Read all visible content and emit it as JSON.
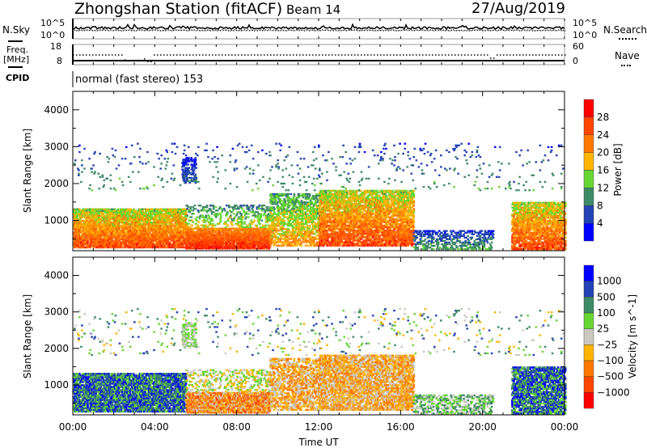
{
  "header": {
    "title": "Zhongshan Station (fitACF)",
    "beam": "Beam 14",
    "date": "27/Aug/2019"
  },
  "noise_panel": {
    "left_label": "N.Sky",
    "right_label": "N.Search",
    "left_ticks": [
      "10^5",
      "10^0"
    ],
    "right_ticks": [
      "10^5",
      "10^0"
    ]
  },
  "freq_panel": {
    "left_label_1": "Freq.",
    "left_label_2": "[MHz]",
    "right_label": "Nave",
    "left_ticks": [
      "18",
      "8"
    ],
    "right_ticks": [
      "60",
      "0"
    ]
  },
  "cpid": {
    "label": "CPID",
    "value": "normal (fast stereo) 153"
  },
  "chart_data": [
    {
      "type": "heatmap",
      "name": "power",
      "ylabel": "Slant Range [km]",
      "xlabel": "Time UT",
      "xlim": [
        0,
        24
      ],
      "ylim": [
        180,
        4500
      ],
      "xticks": [
        "00:00",
        "04:00",
        "08:00",
        "12:00",
        "16:00",
        "20:00",
        "00:00"
      ],
      "yticks": [
        "1000",
        "2000",
        "3000",
        "4000"
      ],
      "ytick_values": [
        1000,
        2000,
        3000,
        4000
      ],
      "colorbar": {
        "label": "Power [dB]",
        "ticks": [
          "28",
          "24",
          "20",
          "16",
          "12",
          "8",
          "4"
        ],
        "colors": [
          "#0000ff",
          "#2343b4",
          "#3f8a66",
          "#66d633",
          "#ffb400",
          "#ff7800",
          "#ff4600",
          "#ff0000"
        ]
      }
    },
    {
      "type": "heatmap",
      "name": "velocity",
      "ylabel": "Slant Range [km]",
      "xlabel": "Time UT",
      "xlim": [
        0,
        24
      ],
      "ylim": [
        180,
        4500
      ],
      "xticks": [
        "00:00",
        "04:00",
        "08:00",
        "12:00",
        "16:00",
        "20:00",
        "00:00"
      ],
      "yticks": [
        "1000",
        "2000",
        "3000",
        "4000"
      ],
      "ytick_values": [
        1000,
        2000,
        3000,
        4000
      ],
      "colorbar": {
        "label": "Velocity [m s^-1]",
        "ticks": [
          "1000",
          "500",
          "100",
          "25",
          "−25",
          "−100",
          "−500",
          "−1000"
        ],
        "colors": [
          "#0000ff",
          "#2343b4",
          "#3f8a66",
          "#66d633",
          "#c8c8c0",
          "#ffb400",
          "#ff7800",
          "#ff4600",
          "#ff0000"
        ]
      }
    }
  ],
  "echo_regions": [
    {
      "t": [
        0,
        5.5
      ],
      "r": [
        250,
        1300
      ],
      "power": [
        14,
        30
      ],
      "vel": [
        0,
        4
      ],
      "density": 0.75
    },
    {
      "t": [
        5.5,
        9.6
      ],
      "r": [
        220,
        800
      ],
      "power": [
        20,
        31
      ],
      "vel": [
        4,
        8
      ],
      "density": 0.8
    },
    {
      "t": [
        5.5,
        9.6
      ],
      "r": [
        800,
        1400
      ],
      "power": [
        8,
        20
      ],
      "vel": [
        3,
        6
      ],
      "density": 0.25
    },
    {
      "t": [
        9.6,
        12
      ],
      "r": [
        300,
        1700
      ],
      "power": [
        10,
        24
      ],
      "vel": [
        4,
        7
      ],
      "density": 0.5
    },
    {
      "t": [
        12,
        16.6
      ],
      "r": [
        300,
        1800
      ],
      "power": [
        14,
        30
      ],
      "vel": [
        4,
        7
      ],
      "density": 0.65
    },
    {
      "t": [
        16.6,
        20.5
      ],
      "r": [
        200,
        700
      ],
      "power": [
        4,
        14
      ],
      "vel": [
        2,
        5
      ],
      "density": 0.35
    },
    {
      "t": [
        21.4,
        24
      ],
      "r": [
        200,
        1500
      ],
      "power": [
        14,
        30
      ],
      "vel": [
        0,
        4
      ],
      "density": 0.65
    },
    {
      "t": [
        0,
        24
      ],
      "r": [
        1800,
        3100
      ],
      "power": [
        4,
        14
      ],
      "vel": [
        1,
        6
      ],
      "density": 0.03
    },
    {
      "t": [
        5.3,
        6
      ],
      "r": [
        2000,
        2700
      ],
      "power": [
        2,
        10
      ],
      "vel": [
        3,
        5
      ],
      "density": 0.4
    }
  ]
}
